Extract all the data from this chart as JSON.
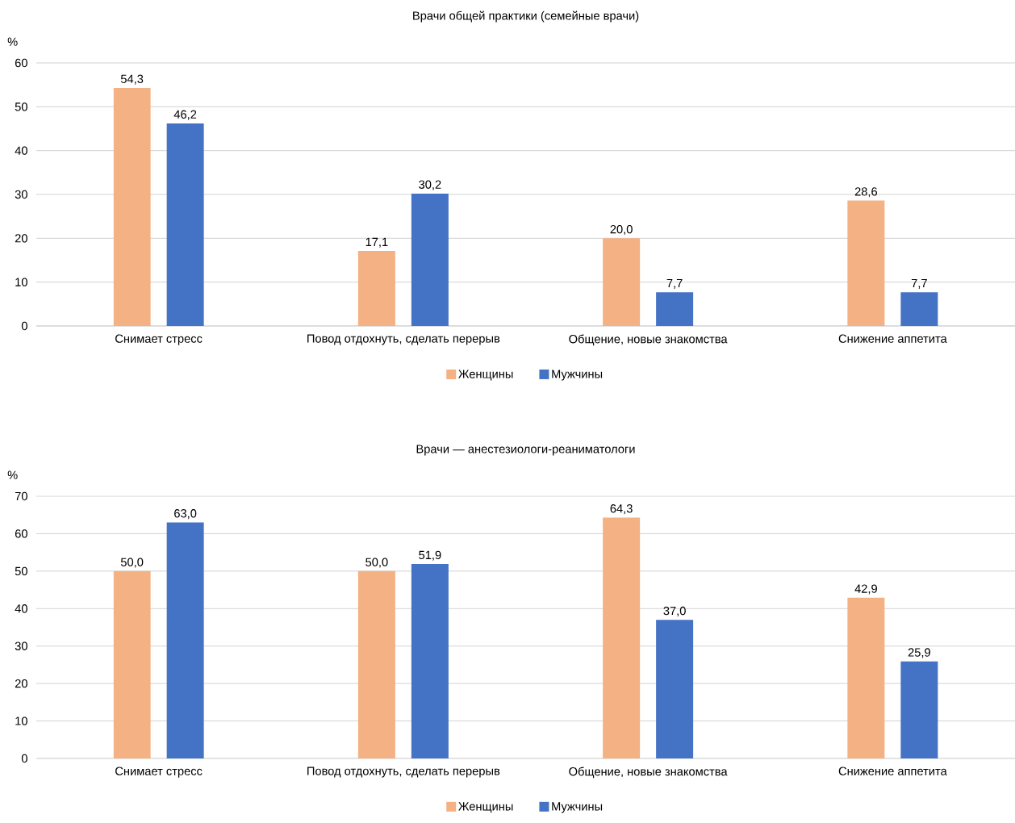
{
  "chart_data": [
    {
      "type": "bar",
      "title": "Врачи общей практики (семейные врачи)",
      "ylabel": "%",
      "categories": [
        "Снимает стресс",
        "Повод отдохнуть, сделать перерыв",
        "Общение, новые знакомства",
        "Снижение аппетита"
      ],
      "series": [
        {
          "name": "Женщины",
          "color": "#f4b183",
          "values": [
            54.3,
            17.1,
            20.0,
            28.6
          ],
          "value_labels": [
            "54,3",
            "17,1",
            "20,0",
            "28,6"
          ]
        },
        {
          "name": "Мужчины",
          "color": "#4472c4",
          "values": [
            46.2,
            30.2,
            7.7,
            7.7
          ],
          "value_labels": [
            "46,2",
            "30,2",
            "7,7",
            "7,7"
          ]
        }
      ],
      "ylim": [
        0,
        60
      ],
      "yticks": [
        0,
        10,
        20,
        30,
        40,
        50,
        60
      ],
      "grid": "y",
      "legend": "bottom"
    },
    {
      "type": "bar",
      "title": "Врачи — анестезиологи-реаниматологи",
      "ylabel": "%",
      "categories": [
        "Снимает стресс",
        "Повод отдохнуть, сделать перерыв",
        "Общение, новые знакомства",
        "Снижение аппетита"
      ],
      "series": [
        {
          "name": "Женщины",
          "color": "#f4b183",
          "values": [
            50.0,
            50.0,
            64.3,
            42.9
          ],
          "value_labels": [
            "50,0",
            "50,0",
            "64,3",
            "42,9"
          ]
        },
        {
          "name": "Мужчины",
          "color": "#4472c4",
          "values": [
            63.0,
            51.9,
            37.0,
            25.9
          ],
          "value_labels": [
            "63,0",
            "51,9",
            "37,0",
            "25,9"
          ]
        }
      ],
      "ylim": [
        0,
        70
      ],
      "yticks": [
        0,
        10,
        20,
        30,
        40,
        50,
        60,
        70
      ],
      "grid": "y",
      "legend": "bottom"
    }
  ]
}
